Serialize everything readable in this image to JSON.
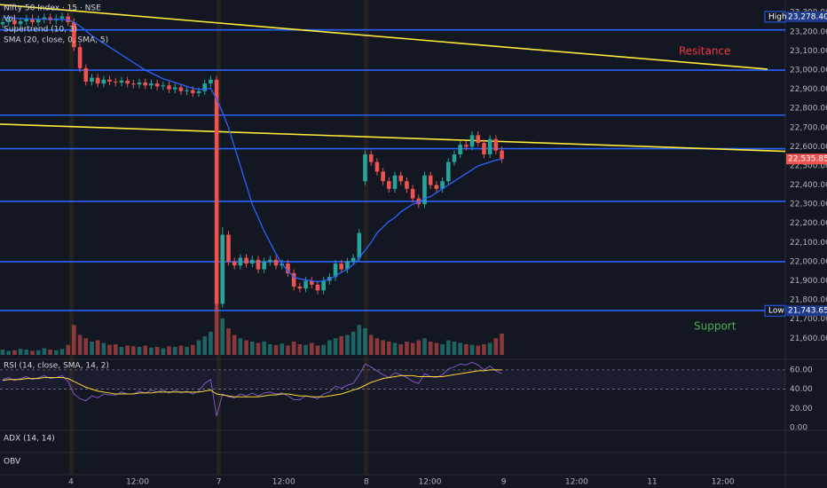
{
  "chart_data": {
    "type": "candlestick",
    "title": "Nifty 50 Index · 15 · NSE",
    "legend": [
      "Vol",
      "Supertrend (10, 3)",
      "SMA (20, close, 0, SMA, 5)"
    ],
    "xlim": [
      -0.45,
      131.7
    ],
    "xticks": [
      {
        "value": 11.5,
        "label": "4"
      },
      {
        "value": 22.7,
        "label": "12:00"
      },
      {
        "value": 36.4,
        "label": "7"
      },
      {
        "value": 47.3,
        "label": "12:00"
      },
      {
        "value": 61.2,
        "label": "8"
      },
      {
        "value": 71.9,
        "label": "12:00"
      },
      {
        "value": 84.3,
        "label": "9"
      },
      {
        "value": 96.6,
        "label": "12:00"
      },
      {
        "value": 109.3,
        "label": "11"
      },
      {
        "value": 121.2,
        "label": "12:00"
      }
    ],
    "ylim": [
      21490,
      23366
    ],
    "yticks": [
      {
        "value": 23300,
        "label": "23,300.00"
      },
      {
        "value": 23200,
        "label": "23,200.00"
      },
      {
        "value": 23100,
        "label": "23,100.00"
      },
      {
        "value": 23000,
        "label": "23,000.00"
      },
      {
        "value": 22900,
        "label": "22,900.00"
      },
      {
        "value": 22800,
        "label": "22,800.00"
      },
      {
        "value": 22700,
        "label": "22,700.00"
      },
      {
        "value": 22600,
        "label": "22,600.00"
      },
      {
        "value": 22500,
        "label": "22,500.00"
      },
      {
        "value": 22400,
        "label": "22,400.00"
      },
      {
        "value": 22300,
        "label": "22,300.00"
      },
      {
        "value": 22200,
        "label": "22,200.00"
      },
      {
        "value": 22100,
        "label": "22,100.00"
      },
      {
        "value": 22000,
        "label": "22,000.00"
      },
      {
        "value": 21900,
        "label": "21,900.00"
      },
      {
        "value": 21800,
        "label": "21,800.00"
      },
      {
        "value": 21700,
        "label": "21,700.00"
      },
      {
        "value": 21600,
        "label": "21,600.00"
      }
    ],
    "up_color": "#26a69a",
    "down_color": "#ef5350",
    "open": [
      23240,
      23250,
      23260,
      23240,
      23255,
      23270,
      23250,
      23265,
      23275,
      23260,
      23270,
      23280,
      23250,
      23120,
      23010,
      22940,
      22960,
      22930,
      22950,
      22940,
      22935,
      22945,
      22930,
      22925,
      22935,
      22920,
      22930,
      22915,
      22920,
      22900,
      22910,
      22890,
      22895,
      22880,
      22890,
      22930,
      22950,
      21780,
      22140,
      22000,
      21980,
      22020,
      21990,
      22010,
      21960,
      22000,
      22010,
      21980,
      21990,
      21940,
      21870,
      21860,
      21900,
      21880,
      21850,
      21900,
      21920,
      21990,
      21960,
      22000,
      22020,
      22420,
      22560,
      22520,
      22470,
      22420,
      22380,
      22450,
      22420,
      22380,
      22330,
      22300,
      22450,
      22400,
      22380,
      22420,
      22520,
      22560,
      22610,
      22600,
      22660,
      22620,
      22560,
      22640,
      22580
    ],
    "high": [
      23270,
      23280,
      23280,
      23275,
      23290,
      23290,
      23285,
      23295,
      23295,
      23290,
      23300,
      23300,
      23270,
      23140,
      23030,
      22980,
      22980,
      22970,
      22970,
      22960,
      22965,
      22965,
      22950,
      22955,
      22955,
      22950,
      22950,
      22940,
      22940,
      22930,
      22930,
      22915,
      22915,
      22910,
      22950,
      22970,
      22970,
      22180,
      22160,
      22020,
      22040,
      22040,
      22030,
      22030,
      22020,
      22030,
      22030,
      22010,
      22010,
      21960,
      21890,
      21920,
      21920,
      21900,
      21920,
      21940,
      22010,
      22010,
      22020,
      22040,
      22170,
      22580,
      22580,
      22540,
      22490,
      22440,
      22470,
      22470,
      22440,
      22400,
      22350,
      22470,
      22470,
      22420,
      22440,
      22540,
      22580,
      22630,
      22630,
      22680,
      22680,
      22640,
      22660,
      22660,
      22600
    ],
    "low": [
      23220,
      23230,
      23220,
      23220,
      23235,
      23230,
      23230,
      23245,
      23240,
      23240,
      23250,
      23230,
      23100,
      22990,
      22920,
      22920,
      22910,
      22910,
      22920,
      22915,
      22915,
      22910,
      22905,
      22905,
      22900,
      22900,
      22895,
      22895,
      22880,
      22880,
      22870,
      22870,
      22860,
      22860,
      22870,
      22910,
      21750,
      21760,
      21980,
      21960,
      21960,
      21970,
      21970,
      21940,
      21940,
      21980,
      21960,
      21960,
      21920,
      21850,
      21840,
      21840,
      21860,
      21830,
      21830,
      21880,
      21900,
      21940,
      21940,
      21980,
      22000,
      22400,
      22500,
      22450,
      22400,
      22360,
      22360,
      22400,
      22360,
      22310,
      22280,
      22280,
      22380,
      22360,
      22360,
      22400,
      22500,
      22540,
      22580,
      22580,
      22600,
      22540,
      22540,
      22560,
      22516
    ],
    "close": [
      23250,
      23260,
      23240,
      23255,
      23270,
      23250,
      23265,
      23275,
      23260,
      23270,
      23280,
      23250,
      23120,
      23010,
      22940,
      22960,
      22930,
      22950,
      22940,
      22935,
      22945,
      22930,
      22925,
      22935,
      22920,
      22930,
      22915,
      22920,
      22900,
      22910,
      22890,
      22895,
      22880,
      22890,
      22930,
      22950,
      21780,
      22140,
      22000,
      21980,
      22020,
      21990,
      22010,
      21960,
      22000,
      22010,
      21980,
      21990,
      21940,
      21870,
      21860,
      21900,
      21880,
      21850,
      21900,
      21920,
      21990,
      21960,
      22000,
      22020,
      22150,
      22560,
      22520,
      22470,
      22420,
      22380,
      22450,
      22420,
      22380,
      22330,
      22300,
      22450,
      22400,
      22380,
      22420,
      22520,
      22560,
      22610,
      22600,
      22660,
      22620,
      22560,
      22640,
      22580,
      22536
    ],
    "volume": [
      8,
      6,
      7,
      9,
      8,
      6,
      7,
      10,
      8,
      7,
      9,
      15,
      45,
      30,
      25,
      20,
      22,
      18,
      15,
      16,
      12,
      14,
      13,
      12,
      14,
      11,
      12,
      10,
      13,
      12,
      14,
      12,
      15,
      22,
      28,
      35,
      80,
      55,
      40,
      30,
      25,
      22,
      20,
      18,
      20,
      16,
      15,
      17,
      14,
      20,
      16,
      15,
      18,
      14,
      15,
      22,
      25,
      28,
      30,
      35,
      45,
      40,
      30,
      25,
      22,
      20,
      18,
      16,
      20,
      18,
      22,
      25,
      20,
      18,
      16,
      22,
      20,
      18,
      16,
      15,
      14,
      16,
      18,
      25,
      32
    ],
    "sma": {
      "color": "#2962ff",
      "values": [
        23275,
        23272,
        23270,
        23268,
        23268,
        23267,
        23266,
        23266,
        23266,
        23265,
        23265,
        23262,
        23250,
        23230,
        23205,
        23180,
        23160,
        23140,
        23120,
        23100,
        23080,
        23060,
        23040,
        23020,
        23000,
        22985,
        22970,
        22955,
        22945,
        22935,
        22925,
        22915,
        22905,
        22900,
        22900,
        22905,
        22850,
        22780,
        22700,
        22600,
        22500,
        22400,
        22300,
        22230,
        22160,
        22100,
        22040,
        21990,
        21950,
        21920,
        21910,
        21905,
        21900,
        21895,
        21900,
        21910,
        21925,
        21945,
        21960,
        21985,
        22020,
        22060,
        22100,
        22150,
        22180,
        22210,
        22230,
        22260,
        22280,
        22300,
        22310,
        22330,
        22340,
        22360,
        22380,
        22400,
        22420,
        22440,
        22460,
        22480,
        22500,
        22510,
        22520,
        22530,
        22535
      ]
    },
    "levels": {
      "color": "#2962ff",
      "values": [
        23210,
        23000,
        22765,
        22590,
        22315,
        22000,
        21745
      ]
    },
    "trendlines": {
      "color": "#ffeb3b",
      "lines": [
        {
          "x": [
            -0.45,
            128.7
          ],
          "y": [
            23342,
            23005
          ]
        },
        {
          "x": [
            -0.45,
            131.7
          ],
          "y": [
            22718,
            22576
          ]
        }
      ]
    },
    "annotations": [
      {
        "text": "Resitance",
        "color": "#f23645"
      },
      {
        "text": "Support",
        "color": "#4caf50"
      }
    ],
    "high_marker": {
      "text": "High",
      "value": 23278.4,
      "label": "23,278.40"
    },
    "last_price": {
      "value": 22535.85,
      "label": "22,535.85"
    },
    "low_marker": {
      "text": "Low",
      "value": 21743.65,
      "label": "21,743.65"
    },
    "rsi": {
      "title": "RSI (14, close, SMA, 14, 2)",
      "ylim": [
        -2.7,
        70.9
      ],
      "yticks": [
        {
          "value": 60,
          "label": "60.00"
        },
        {
          "value": 40,
          "label": "40.00"
        },
        {
          "value": 20,
          "label": "20.00"
        },
        {
          "value": 0,
          "label": "0.00"
        }
      ],
      "bands": [
        40,
        60
      ],
      "series": [
        {
          "color": "#7e57c2",
          "values": [
            50,
            52,
            49,
            51,
            53,
            50,
            52,
            54,
            51,
            52,
            54,
            48,
            35,
            30,
            28,
            33,
            31,
            35,
            34,
            34,
            37,
            35,
            35,
            38,
            36,
            39,
            37,
            39,
            36,
            39,
            36,
            38,
            35,
            38,
            46,
            50,
            12,
            35,
            32,
            31,
            35,
            33,
            36,
            33,
            36,
            37,
            35,
            36,
            33,
            29,
            29,
            33,
            32,
            30,
            35,
            37,
            43,
            41,
            44,
            46,
            55,
            66,
            63,
            59,
            55,
            52,
            57,
            55,
            52,
            48,
            46,
            56,
            53,
            52,
            55,
            61,
            63,
            66,
            65,
            68,
            65,
            60,
            64,
            59,
            56
          ]
        },
        {
          "color": "#fdd835",
          "values": [
            49,
            50,
            50,
            50,
            51,
            51,
            51,
            52,
            52,
            52,
            52,
            51,
            48,
            45,
            42,
            40,
            38,
            37,
            36,
            35,
            35,
            35,
            35,
            36,
            36,
            36,
            37,
            37,
            37,
            37,
            37,
            37,
            37,
            37,
            38,
            39,
            35,
            34,
            33,
            32,
            32,
            32,
            32,
            32,
            33,
            34,
            34,
            35,
            35,
            34,
            33,
            33,
            32,
            32,
            32,
            33,
            34,
            35,
            37,
            39,
            41,
            44,
            47,
            49,
            51,
            52,
            53,
            54,
            54,
            54,
            53,
            53,
            53,
            53,
            53,
            54,
            55,
            56,
            57,
            58,
            59,
            59,
            60,
            60,
            60
          ]
        }
      ]
    },
    "adx": {
      "title": "ADX (14, 14)"
    },
    "obv": {
      "title": "OBV"
    }
  }
}
